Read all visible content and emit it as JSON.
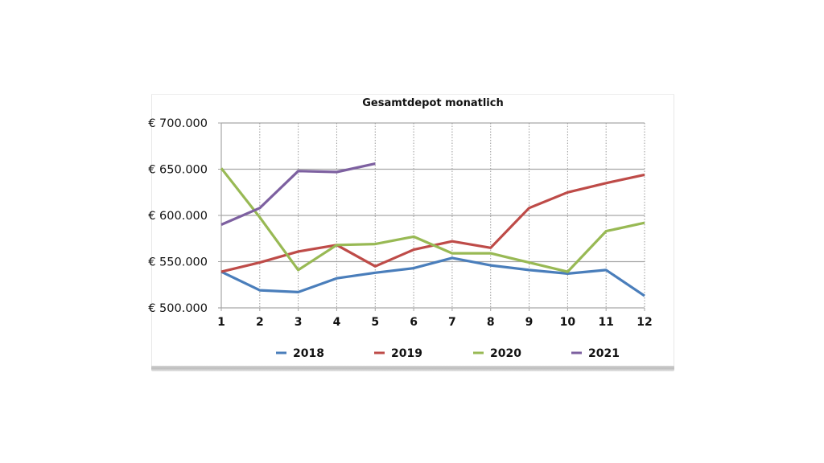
{
  "chart_data": {
    "type": "line",
    "title": "Gesamtdepot monatlich",
    "xlabel": "",
    "ylabel": "",
    "x": [
      1,
      2,
      3,
      4,
      5,
      6,
      7,
      8,
      9,
      10,
      11,
      12
    ],
    "x_tick_labels": [
      "1",
      "2",
      "3",
      "4",
      "5",
      "6",
      "7",
      "8",
      "9",
      "10",
      "11",
      "12"
    ],
    "ylim": [
      500000,
      700000
    ],
    "y_ticks": [
      500000,
      550000,
      600000,
      650000,
      700000
    ],
    "y_tick_labels": [
      "€ 500.000",
      "€ 550.000",
      "€ 600.000",
      "€ 650.000",
      "€ 700.000"
    ],
    "grid": {
      "horizontal": "solid",
      "vertical": "dotted"
    },
    "legend_position": "bottom",
    "series": [
      {
        "name": "2018",
        "color": "#4a7ebb",
        "values": [
          539000,
          519000,
          517000,
          532000,
          538000,
          543000,
          554000,
          546000,
          541000,
          537000,
          541000,
          513000
        ]
      },
      {
        "name": "2019",
        "color": "#be4b48",
        "values": [
          539000,
          549000,
          561000,
          568000,
          545000,
          563000,
          572000,
          565000,
          608000,
          625000,
          635000,
          644000
        ]
      },
      {
        "name": "2020",
        "color": "#98b954",
        "values": [
          651000,
          598000,
          541000,
          568000,
          569000,
          577000,
          559000,
          559000,
          549000,
          539000,
          583000,
          592000
        ]
      },
      {
        "name": "2021",
        "color": "#7d60a0",
        "values": [
          590000,
          608000,
          648000,
          647000,
          656000,
          null,
          null,
          null,
          null,
          null,
          null,
          null
        ]
      }
    ]
  }
}
